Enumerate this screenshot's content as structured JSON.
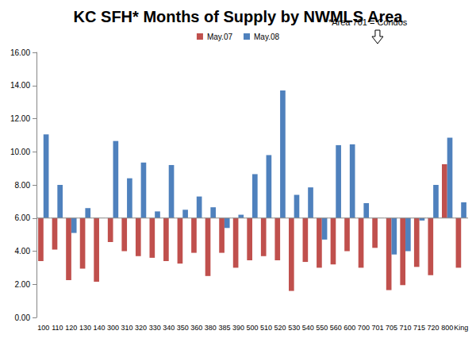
{
  "chart_data": {
    "type": "bar",
    "title": "KC SFH* Months of Supply by NWMLS Area",
    "categories": [
      "100",
      "110",
      "120",
      "130",
      "140",
      "300",
      "310",
      "320",
      "330",
      "340",
      "350",
      "360",
      "380",
      "385",
      "390",
      "500",
      "510",
      "520",
      "530",
      "540",
      "550",
      "560",
      "600",
      "700",
      "701",
      "705",
      "710",
      "715",
      "720",
      "800",
      "King"
    ],
    "series": [
      {
        "name": "May.07",
        "color": "#c0504d",
        "values": [
          3.4,
          4.1,
          2.25,
          2.95,
          2.15,
          4.55,
          4.0,
          3.7,
          3.6,
          3.4,
          3.25,
          3.9,
          2.5,
          3.9,
          3.0,
          3.45,
          3.7,
          3.45,
          1.6,
          3.35,
          3.0,
          3.2,
          4.0,
          3.0,
          4.2,
          1.65,
          1.95,
          3.05,
          2.55,
          9.25,
          3.0
        ]
      },
      {
        "name": "May.08",
        "color": "#4f81bd",
        "values": [
          11.05,
          8.0,
          5.1,
          6.6,
          null,
          10.65,
          8.4,
          9.35,
          6.4,
          9.2,
          6.5,
          7.3,
          6.65,
          5.4,
          6.2,
          8.65,
          9.8,
          13.7,
          7.4,
          7.85,
          4.7,
          10.4,
          10.45,
          6.9,
          null,
          3.8,
          4.0,
          5.85,
          8.0,
          10.85,
          6.95
        ]
      }
    ],
    "baseline": 6.0,
    "ylim": [
      0,
      16
    ],
    "yticks": [
      {
        "value": 0,
        "label": "0.00"
      },
      {
        "value": 2,
        "label": "2.00"
      },
      {
        "value": 4,
        "label": "4.00"
      },
      {
        "value": 6,
        "label": "6.00"
      },
      {
        "value": 8,
        "label": "8.00"
      },
      {
        "value": 10,
        "label": "10.00"
      },
      {
        "value": 12,
        "label": "12.00"
      },
      {
        "value": 14,
        "label": "14.00"
      },
      {
        "value": 16,
        "label": "16.00"
      }
    ],
    "annotations": [
      {
        "text": "*Area 701 = Condos",
        "x": "701"
      }
    ],
    "legend": "top",
    "grid": false
  }
}
